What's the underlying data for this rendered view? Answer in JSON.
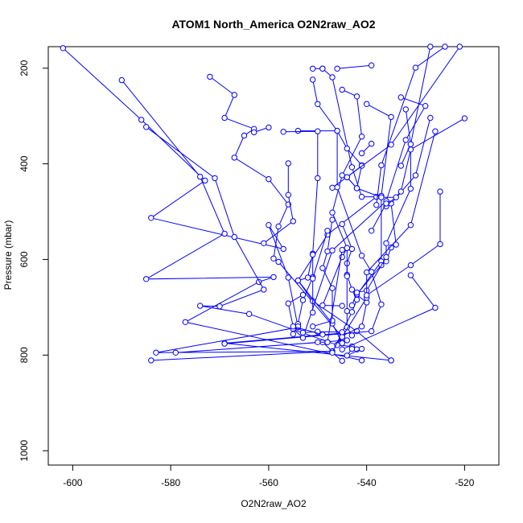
{
  "chart_data": {
    "type": "line",
    "title": "ATOM1 North_America O2N2raw_AO2",
    "xlabel": "O2N2raw_AO2",
    "ylabel": "Pressure (mbar)",
    "xlim": [
      -605,
      -513
    ],
    "ylim": [
      1030,
      155
    ],
    "y_inverted": true,
    "x_ticks": [
      -600,
      -580,
      -560,
      -540,
      -520
    ],
    "y_ticks": [
      200,
      400,
      600,
      800,
      1000
    ],
    "grid": false,
    "legend": "none",
    "series_color": "#0000ff",
    "series": [
      {
        "points": [
          [
            -602,
            158
          ],
          [
            -586,
            308
          ],
          [
            -573,
            435
          ],
          [
            -584,
            513
          ],
          [
            -557,
            578
          ],
          [
            -560,
            528
          ],
          [
            -556,
            638
          ],
          [
            -554,
            742
          ],
          [
            -583,
            795
          ],
          [
            -547,
            792
          ],
          [
            -549,
            773
          ],
          [
            -579,
            795
          ],
          [
            -544,
            769
          ]
        ]
      },
      {
        "points": [
          [
            -590,
            225
          ],
          [
            -574,
            427
          ],
          [
            -569,
            546
          ],
          [
            -585,
            641
          ],
          [
            -559,
            637
          ],
          [
            -562,
            647
          ],
          [
            -577,
            731
          ],
          [
            -541,
            811
          ]
        ]
      },
      {
        "points": [
          [
            -585,
            323
          ],
          [
            -571,
            430
          ],
          [
            -567,
            553
          ],
          [
            -561,
            663
          ],
          [
            -570,
            698
          ],
          [
            -574,
            697
          ],
          [
            -564,
            714
          ],
          [
            -546,
            779
          ],
          [
            -545,
            754
          ],
          [
            -569,
            775
          ],
          [
            -535,
            811
          ]
        ]
      },
      {
        "points": [
          [
            -572,
            218
          ],
          [
            -567,
            256
          ],
          [
            -569,
            304
          ],
          [
            -563,
            327
          ],
          [
            -565,
            341
          ],
          [
            -567,
            387
          ],
          [
            -560,
            432
          ],
          [
            -556,
            485
          ],
          [
            -558,
            531
          ],
          [
            -559,
            598
          ],
          [
            -558,
            605
          ],
          [
            -545,
            762
          ],
          [
            -547,
            792
          ],
          [
            -584,
            811
          ]
        ]
      },
      {
        "points": [
          [
            -551,
            201
          ],
          [
            -549,
            201
          ]
        ]
      },
      {
        "points": [
          [
            -549,
            201
          ],
          [
            -547,
            219
          ],
          [
            -543,
            407
          ],
          [
            -541,
            469
          ],
          [
            -538,
            469
          ],
          [
            -548,
            548
          ],
          [
            -554,
            644
          ],
          [
            -551,
            687
          ],
          [
            -542,
            750
          ],
          [
            -535,
            811
          ]
        ]
      },
      {
        "points": [
          [
            -546,
            201
          ],
          [
            -539,
            194
          ]
        ]
      },
      {
        "points": [
          [
            -551,
            224
          ],
          [
            -550,
            275
          ],
          [
            -546,
            331
          ],
          [
            -544,
            368
          ],
          [
            -541,
            403
          ],
          [
            -542,
            451
          ],
          [
            -544,
            428
          ],
          [
            -541,
            404
          ]
        ]
      },
      {
        "points": [
          [
            -545,
            245
          ],
          [
            -542,
            259
          ],
          [
            -541,
            343
          ],
          [
            -545,
            424
          ],
          [
            -547,
            502
          ],
          [
            -544,
            576
          ],
          [
            -545,
            595
          ],
          [
            -549,
            696
          ],
          [
            -545,
            697
          ]
        ]
      },
      {
        "points": [
          [
            -540,
            275
          ],
          [
            -535,
            302
          ],
          [
            -537,
            467
          ],
          [
            -537,
            604
          ],
          [
            -542,
            674
          ],
          [
            -540,
            690
          ],
          [
            -541,
            740
          ],
          [
            -545,
            760
          ]
        ]
      },
      {
        "points": [
          [
            -554,
            331
          ],
          [
            -546,
            331
          ],
          [
            -546,
            449
          ],
          [
            -541,
            592
          ],
          [
            -539,
            626
          ],
          [
            -537,
            694
          ],
          [
            -539,
            750
          ],
          [
            -569,
            776
          ]
        ]
      },
      {
        "points": [
          [
            -557,
            333
          ],
          [
            -550,
            332
          ],
          [
            -550,
            430
          ],
          [
            -551,
            588
          ],
          [
            -552,
            638
          ],
          [
            -554,
            644
          ],
          [
            -547,
            734
          ],
          [
            -545,
            775
          ],
          [
            -546,
            779
          ],
          [
            -543,
            782
          ],
          [
            -542,
            788
          ]
        ]
      },
      {
        "points": [
          [
            -563,
            334
          ],
          [
            -560,
            324
          ]
        ]
      },
      {
        "points": [
          [
            -551,
            590
          ],
          [
            -551,
            637
          ],
          [
            -553,
            685
          ],
          [
            -554,
            735
          ],
          [
            -555,
            756
          ]
        ]
      },
      {
        "points": [
          [
            -545,
            526
          ],
          [
            -543,
            578
          ],
          [
            -544,
            608
          ],
          [
            -544,
            632
          ],
          [
            -543,
            663
          ],
          [
            -542,
            684
          ],
          [
            -543,
            710
          ],
          [
            -547,
            795
          ],
          [
            -545,
            812
          ]
        ]
      },
      {
        "points": [
          [
            -547,
            517
          ],
          [
            -548,
            583
          ],
          [
            -549,
            618
          ],
          [
            -547,
            660
          ],
          [
            -547,
            728
          ],
          [
            -551,
            740
          ]
        ]
      },
      {
        "points": [
          [
            -544,
            576
          ],
          [
            -544,
            635
          ],
          [
            -544,
            708
          ],
          [
            -544,
            742
          ],
          [
            -543,
            759
          ]
        ]
      },
      {
        "points": [
          [
            -541,
            378
          ],
          [
            -539,
            358
          ]
        ]
      },
      {
        "points": [
          [
            -533,
            261
          ],
          [
            -528,
            279
          ],
          [
            -532,
            350
          ],
          [
            -536,
            478
          ],
          [
            -547,
            581
          ],
          [
            -553,
            764
          ],
          [
            -555,
            745
          ]
        ]
      },
      {
        "points": [
          [
            -527,
            304
          ],
          [
            -530,
            424
          ],
          [
            -535,
            483
          ],
          [
            -534,
            569
          ],
          [
            -535,
            575
          ],
          [
            -536,
            604
          ],
          [
            -537,
            612
          ],
          [
            -542,
            673
          ]
        ]
      },
      {
        "points": [
          [
            -532,
            286
          ],
          [
            -531,
            359
          ],
          [
            -531,
            452
          ],
          [
            -536,
            566
          ],
          [
            -536,
            595
          ],
          [
            -540,
            665
          ],
          [
            -542,
            669
          ],
          [
            -543,
            696
          ]
        ]
      },
      {
        "points": [
          [
            -526,
            332
          ],
          [
            -531,
            528
          ],
          [
            -540,
            627
          ],
          [
            -540,
            680
          ],
          [
            -545,
            762
          ]
        ]
      },
      {
        "points": [
          [
            -520,
            305
          ],
          [
            -531,
            370
          ],
          [
            -533,
            458
          ],
          [
            -536,
            489
          ]
        ]
      },
      {
        "points": [
          [
            -525,
            458
          ],
          [
            -525,
            568
          ],
          [
            -531,
            612
          ],
          [
            -540,
            675
          ]
        ]
      },
      {
        "points": [
          [
            -531,
            633
          ],
          [
            -526,
            701
          ],
          [
            -545,
            788
          ]
        ]
      },
      {
        "points": [
          [
            -539,
            540
          ],
          [
            -536,
            483
          ]
        ]
      },
      {
        "points": [
          [
            -556,
            399
          ],
          [
            -556,
            465
          ],
          [
            -555,
            520
          ],
          [
            -561,
            566
          ]
        ]
      },
      {
        "points": [
          [
            -548,
            540
          ],
          [
            -551,
            640
          ],
          [
            -551,
            711
          ]
        ]
      },
      {
        "points": [
          [
            -545,
            580
          ],
          [
            -548,
            773
          ]
        ]
      },
      {
        "points": [
          [
            -548,
            773
          ],
          [
            -550,
            773
          ]
        ]
      },
      {
        "points": [
          [
            -521,
            155
          ],
          [
            -535,
            360
          ],
          [
            -547,
            450
          ]
        ]
      },
      {
        "points": [
          [
            -524,
            155
          ],
          [
            -530,
            199
          ],
          [
            -537,
            403
          ],
          [
            -538,
            486
          ]
        ]
      },
      {
        "points": [
          [
            -527,
            155
          ],
          [
            -531,
            359
          ],
          [
            -533,
            404
          ]
        ]
      },
      {
        "points": [
          [
            -534,
            470
          ],
          [
            -537,
            470
          ],
          [
            -542,
            451
          ],
          [
            -544,
            428
          ]
        ]
      },
      {
        "points": [
          [
            -554,
            740
          ],
          [
            -553,
            753
          ],
          [
            -550,
            751
          ],
          [
            -545,
            752
          ]
        ]
      },
      {
        "points": [
          [
            -553,
            674
          ],
          [
            -556,
            692
          ],
          [
            -555,
            740
          ],
          [
            -549,
            757
          ]
        ]
      },
      {
        "points": [
          [
            -543,
            787
          ],
          [
            -544,
            801
          ],
          [
            -541,
            787
          ]
        ]
      }
    ]
  }
}
